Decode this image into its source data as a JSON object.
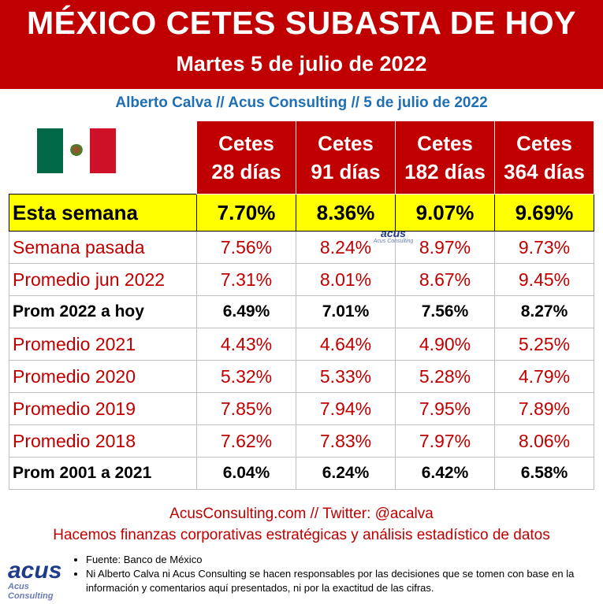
{
  "header": {
    "title": "MÉXICO CETES SUBASTA DE HOY",
    "subtitle": "Martes 5 de julio de 2022"
  },
  "byline": "Alberto Calva // Acus Consulting // 5 de julio de 2022",
  "flag_icon": "mexico-flag-icon",
  "columns": [
    {
      "line1": "Cetes",
      "line2": "28 días"
    },
    {
      "line1": "Cetes",
      "line2": "91 días"
    },
    {
      "line1": "Cetes",
      "line2": "182 días"
    },
    {
      "line1": "Cetes",
      "line2": "364 días"
    }
  ],
  "rows": [
    {
      "label": "Esta semana",
      "values": [
        "7.70%",
        "8.36%",
        "9.07%",
        "9.69%"
      ]
    },
    {
      "label": "Semana pasada",
      "values": [
        "7.56%",
        "8.24%",
        "8.97%",
        "9.73%"
      ]
    },
    {
      "label": "Promedio jun 2022",
      "values": [
        "7.31%",
        "8.01%",
        "8.67%",
        "9.45%"
      ]
    },
    {
      "label": "Prom 2022 a hoy",
      "values": [
        "6.49%",
        "7.01%",
        "7.56%",
        "8.27%"
      ]
    },
    {
      "label": "Promedio 2021",
      "values": [
        "4.43%",
        "4.64%",
        "4.90%",
        "5.25%"
      ]
    },
    {
      "label": "Promedio 2020",
      "values": [
        "5.32%",
        "5.33%",
        "5.28%",
        "4.79%"
      ]
    },
    {
      "label": "Promedio 2019",
      "values": [
        "7.85%",
        "7.94%",
        "7.95%",
        "7.89%"
      ]
    },
    {
      "label": "Promedio 2018",
      "values": [
        "7.62%",
        "7.83%",
        "7.97%",
        "8.06%"
      ]
    },
    {
      "label": "Prom 2001 a 2021",
      "values": [
        "6.04%",
        "6.24%",
        "6.42%",
        "6.58%"
      ]
    }
  ],
  "watermark": {
    "big": "acus",
    "small": "Acus Consulting"
  },
  "footer": {
    "contact": "AcusConsulting.com // Twitter: @acalva",
    "tagline": "Hacemos finanzas corporativas estratégicas y análisis estadístico de datos"
  },
  "logo": {
    "big": "acus",
    "small": "Acus Consulting"
  },
  "notes": [
    "Fuente: Banco de México",
    "Ni Alberto Calva ni Acus Consulting se hacen responsables por las decisiones que se tomen con base en la información y comentarios aquí presentados, ni por la exactitud de las cifras."
  ],
  "colors": {
    "banner_red": "#c00000",
    "highlight_yellow": "#ffff00",
    "byline_blue": "#1f6fb4"
  }
}
